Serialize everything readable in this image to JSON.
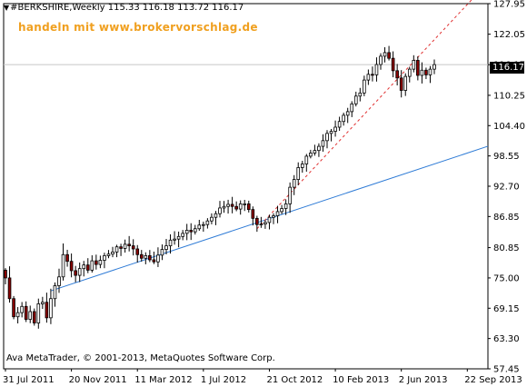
{
  "header": {
    "symbol_line": "#BERKSHIRE,Weekly  115.33 116.18 113.72 116.17",
    "watermark": "handeln mit www.brokervorschlag.de"
  },
  "footer": {
    "copyright": "Ava MetaTrader, © 2001-2013, MetaQuotes Software Corp."
  },
  "current_price_label": "116.17",
  "chart_data": {
    "type": "candlestick",
    "symbol": "#BERKSHIRE",
    "timeframe": "Weekly",
    "last_bar": {
      "open": 115.33,
      "high": 116.18,
      "low": 113.72,
      "close": 116.17
    },
    "ylim": [
      57.45,
      127.95
    ],
    "y_ticks": [
      "127.95",
      "122.05",
      "116.17",
      "110.25",
      "104.40",
      "98.55",
      "92.70",
      "86.85",
      "80.85",
      "75.00",
      "69.15",
      "63.30",
      "57.45"
    ],
    "x_ticks": [
      "31 Jul 2011",
      "20 Nov 2011",
      "11 Mar 2012",
      "1 Jul 2012",
      "21 Oct 2012",
      "10 Feb 2013",
      "2 Jun 2013",
      "22 Sep 2013"
    ],
    "colors": {
      "up": "#ffffff",
      "down": "#8b0000",
      "outline": "#000000",
      "trend_blue": "#2e7bd6",
      "trend_red": "#e03030"
    },
    "closes": [
      75.0,
      71.0,
      67.5,
      68.3,
      69.5,
      67.0,
      68.5,
      66.3,
      70.0,
      70.3,
      67.3,
      71.0,
      73.5,
      75.2,
      79.5,
      78.2,
      76.4,
      75.5,
      76.8,
      77.5,
      76.5,
      78.3,
      77.6,
      78.4,
      79.3,
      79.6,
      80.0,
      81.0,
      80.7,
      81.5,
      81.2,
      80.6,
      79.5,
      78.8,
      79.3,
      78.5,
      78.1,
      79.4,
      80.5,
      81.2,
      82.3,
      82.5,
      83.0,
      83.6,
      84.2,
      83.9,
      84.5,
      85.2,
      85.3,
      86.0,
      86.7,
      87.4,
      88.5,
      88.8,
      89.2,
      88.8,
      88.3,
      89.3,
      89.3,
      88.2,
      86.5,
      85.3,
      85.4,
      85.7,
      86.7,
      87.0,
      87.8,
      88.4,
      89.3,
      92.5,
      94.0,
      96.3,
      97.0,
      98.5,
      99.1,
      99.6,
      100.4,
      101.5,
      102.9,
      103.3,
      104.1,
      105.2,
      106.4,
      107.1,
      108.6,
      110.1,
      110.7,
      113.2,
      114.3,
      114.2,
      116.2,
      117.8,
      118.5,
      117.4,
      115.0,
      113.6,
      111.2,
      113.9,
      115.3,
      117.0,
      114.1,
      115.1,
      114.2,
      115.3,
      116.17
    ]
  },
  "trendlines": [
    {
      "name": "blue-support",
      "style": "solid",
      "x_start": 11,
      "y_start": 72.5,
      "x_end": 104,
      "y_end": 97.0
    },
    {
      "name": "red-dashed",
      "style": "dashed",
      "x_start": 61,
      "y_start": 84.5,
      "x_end": 104,
      "y_end": 121.0
    }
  ],
  "horizontal_line_price": 116.17
}
